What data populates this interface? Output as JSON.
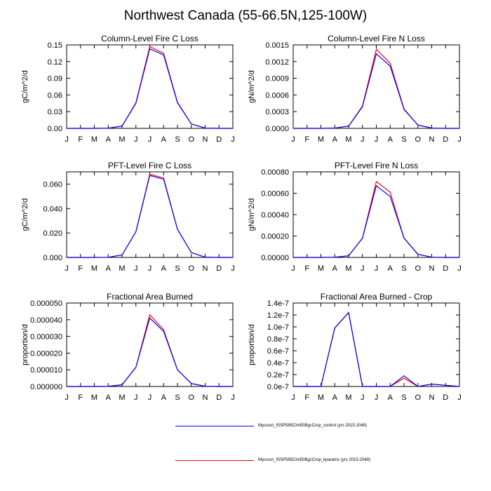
{
  "page": {
    "title": "Northwest Canada (55-66.5N,125-100W)"
  },
  "legend": {
    "items": [
      {
        "label": "Myccost_ISSP585Clm50BgcCrop_control (yrs 2015-2048)",
        "color": "#0000ff"
      },
      {
        "label": "Myccost_ISSP585Clm50BgcCrop_kparams (yrs 2015-2048)",
        "color": "#ff0000"
      }
    ]
  },
  "chart_data": [
    {
      "type": "line",
      "title": "Column-Level Fire C Loss",
      "ylabel": "gC/m^2/d",
      "x": [
        "J",
        "F",
        "M",
        "A",
        "M",
        "J",
        "J",
        "A",
        "S",
        "O",
        "N",
        "D",
        "J"
      ],
      "ylim": [
        0,
        0.15
      ],
      "yticks": [
        "0.00",
        "0.03",
        "0.06",
        "0.09",
        "0.12",
        "0.15"
      ],
      "series": [
        {
          "color": "#ff0000",
          "values": [
            0,
            0,
            0,
            0.0003,
            0.004,
            0.046,
            0.147,
            0.135,
            0.047,
            0.008,
            0.0005,
            0,
            0
          ]
        },
        {
          "color": "#0000ff",
          "values": [
            0,
            0,
            0,
            0.0003,
            0.004,
            0.045,
            0.143,
            0.132,
            0.046,
            0.008,
            0.0005,
            0,
            0
          ]
        }
      ]
    },
    {
      "type": "line",
      "title": "Column-Level Fire N Loss",
      "ylabel": "gN/m^2/d",
      "x": [
        "J",
        "F",
        "M",
        "A",
        "M",
        "J",
        "J",
        "A",
        "S",
        "O",
        "N",
        "D",
        "J"
      ],
      "ylim": [
        0,
        0.0015
      ],
      "yticks": [
        "0.0000",
        "0.0003",
        "0.0006",
        "0.0009",
        "0.0012",
        "0.0015"
      ],
      "series": [
        {
          "color": "#ff0000",
          "values": [
            0,
            0,
            0,
            5e-06,
            4e-05,
            0.0004,
            0.00142,
            0.00117,
            0.00035,
            6e-05,
            5e-06,
            0,
            0
          ]
        },
        {
          "color": "#0000ff",
          "values": [
            0,
            0,
            0,
            5e-06,
            4e-05,
            0.00039,
            0.00134,
            0.00112,
            0.00034,
            6e-05,
            5e-06,
            0,
            0
          ]
        }
      ]
    },
    {
      "type": "line",
      "title": "PFT-Level Fire C Loss",
      "ylabel": "gC/m^2/d",
      "x": [
        "J",
        "F",
        "M",
        "A",
        "M",
        "J",
        "J",
        "A",
        "S",
        "O",
        "N",
        "D",
        "J"
      ],
      "ylim": [
        0,
        0.07
      ],
      "yticks": [
        "0.000",
        "0.020",
        "0.040",
        "0.060"
      ],
      "ytickValues": [
        0,
        0.02,
        0.04,
        0.06
      ],
      "series": [
        {
          "color": "#ff0000",
          "values": [
            0,
            0,
            0,
            0.0001,
            0.002,
            0.021,
            0.068,
            0.065,
            0.023,
            0.004,
            0.0002,
            0,
            0
          ]
        },
        {
          "color": "#0000ff",
          "values": [
            0,
            0,
            0,
            0.0001,
            0.002,
            0.021,
            0.067,
            0.064,
            0.023,
            0.004,
            0.0002,
            0,
            0
          ]
        }
      ]
    },
    {
      "type": "line",
      "title": "PFT-Level Fire N Loss",
      "ylabel": "gN/m^2/d",
      "x": [
        "J",
        "F",
        "M",
        "A",
        "M",
        "J",
        "J",
        "A",
        "S",
        "O",
        "N",
        "D",
        "J"
      ],
      "ylim": [
        0,
        0.0008
      ],
      "yticks": [
        "0.00000",
        "0.00020",
        "0.00040",
        "0.00060",
        "0.00080"
      ],
      "ytickValues": [
        0,
        0.0002,
        0.0004,
        0.0006,
        0.0008
      ],
      "series": [
        {
          "color": "#ff0000",
          "values": [
            0,
            0,
            0,
            2e-06,
            1.5e-05,
            0.00018,
            0.00071,
            0.00061,
            0.00018,
            3e-05,
            2e-06,
            0,
            0
          ]
        },
        {
          "color": "#0000ff",
          "values": [
            0,
            0,
            0,
            2e-06,
            1.5e-05,
            0.00018,
            0.00067,
            0.00057,
            0.00018,
            3e-05,
            2e-06,
            0,
            0
          ]
        }
      ]
    },
    {
      "type": "line",
      "title": "Fractional Area Burned",
      "ylabel": "proportion/d",
      "x": [
        "J",
        "F",
        "M",
        "A",
        "M",
        "J",
        "J",
        "A",
        "S",
        "O",
        "N",
        "D",
        "J"
      ],
      "ylim": [
        0,
        5e-05
      ],
      "yticks": [
        "0.000000",
        "0.000010",
        "0.000020",
        "0.000030",
        "0.000040",
        "0.000050"
      ],
      "series": [
        {
          "color": "#ff0000",
          "values": [
            0,
            0,
            0,
            1e-07,
            1e-06,
            1.15e-05,
            4.3e-05,
            3.4e-05,
            1e-05,
            1.8e-06,
            1e-07,
            0,
            0
          ]
        },
        {
          "color": "#0000ff",
          "values": [
            0,
            0,
            0,
            1e-07,
            1e-06,
            1.15e-05,
            4.1e-05,
            3.3e-05,
            1e-05,
            1.8e-06,
            1e-07,
            0,
            0
          ]
        }
      ]
    },
    {
      "type": "line",
      "title": "Fractional Area Burned - Crop",
      "ylabel": "proportion/d",
      "x": [
        "J",
        "F",
        "M",
        "A",
        "M",
        "J",
        "J",
        "A",
        "S",
        "O",
        "N",
        "D",
        "J"
      ],
      "ylim": [
        0,
        1.4e-07
      ],
      "yticks": [
        "0.0e-7",
        "0.2e-7",
        "0.4e-7",
        "0.6e-7",
        "0.8e-7",
        "1.0e-7",
        "1.2e-7",
        "1.4e-7"
      ],
      "series": [
        {
          "color": "#ff0000",
          "values": [
            0,
            0,
            0,
            9.8e-08,
            1.24e-07,
            0,
            0,
            0,
            1.4e-08,
            0,
            4e-09,
            2e-09,
            0
          ]
        },
        {
          "color": "#0000ff",
          "values": [
            0,
            0,
            0,
            9.8e-08,
            1.24e-07,
            0,
            0,
            0,
            1.8e-08,
            0,
            4e-09,
            2e-09,
            0
          ]
        }
      ]
    }
  ]
}
